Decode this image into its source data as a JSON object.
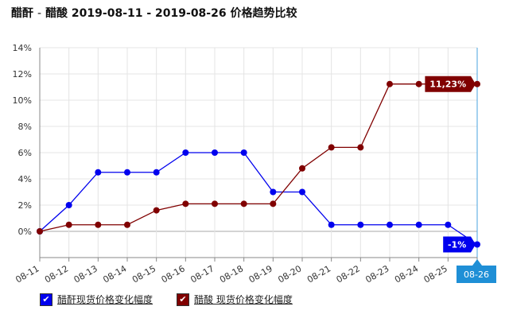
{
  "title": {
    "part1": "醋酐",
    "sep": "-",
    "part2": "醋酸 2019-08-11 - 2019-08-26 价格趋势比较"
  },
  "legend": [
    {
      "label": "醋酐现货价格变化幅度",
      "color": "#0000ee",
      "checked": true
    },
    {
      "label": "醋酸 现货价格变化幅度",
      "color": "#800000",
      "checked": true
    }
  ],
  "chart_data": {
    "type": "line",
    "categories": [
      "08-11",
      "08-12",
      "08-13",
      "08-14",
      "08-15",
      "08-16",
      "08-17",
      "08-18",
      "08-19",
      "08-20",
      "08-21",
      "08-22",
      "08-23",
      "08-24",
      "08-25",
      "08-26"
    ],
    "series": [
      {
        "name": "醋酐现货价格变化幅度",
        "color": "#0000ee",
        "values": [
          0,
          2,
          4.5,
          4.5,
          4.5,
          6,
          6,
          6,
          3,
          3,
          0.5,
          0.5,
          0.5,
          0.5,
          0.5,
          -1
        ]
      },
      {
        "name": "醋酸 现货价格变化幅度",
        "color": "#800000",
        "values": [
          0,
          0.5,
          0.5,
          0.5,
          1.6,
          2.1,
          2.1,
          2.1,
          2.1,
          4.8,
          6.4,
          6.4,
          11.23,
          11.23,
          11.23,
          11.23
        ]
      }
    ],
    "ylim": [
      -2,
      14
    ],
    "yticks": [
      0,
      2,
      4,
      6,
      8,
      10,
      12,
      14
    ],
    "ytick_labels": [
      "0%",
      "2%",
      "4%",
      "6%",
      "8%",
      "10%",
      "12%",
      "14%"
    ],
    "end_labels": [
      "-1%",
      "11,23%"
    ],
    "crosshair_label": "08-26",
    "grid": true
  }
}
